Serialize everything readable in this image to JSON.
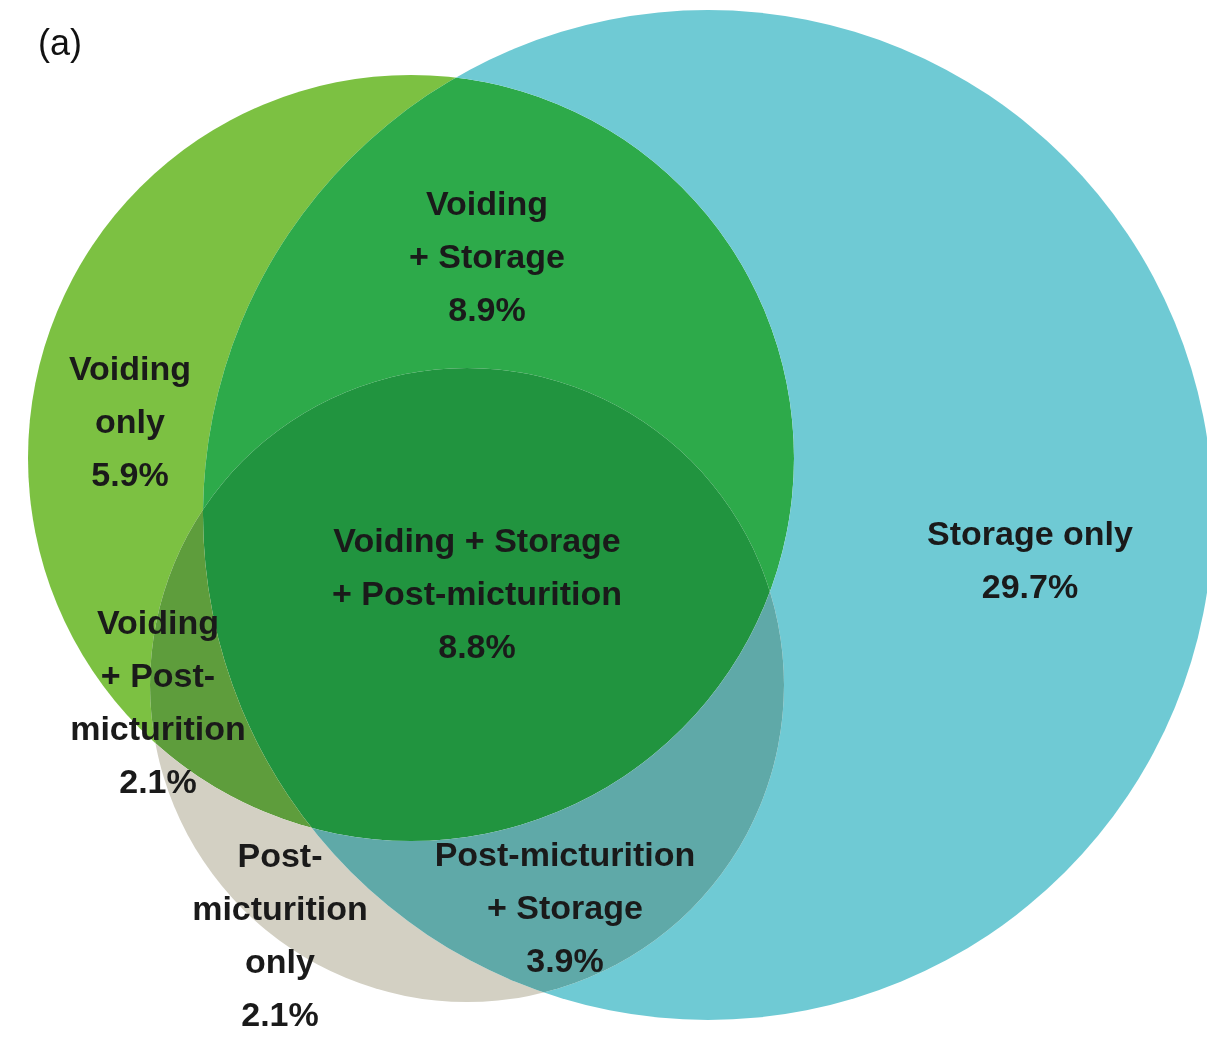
{
  "chart_data": {
    "type": "other",
    "title": "(a)",
    "categories": [
      "Voiding\nonly",
      "Voiding\n+ Storage",
      "Voiding + Storage\n+ Post-micturition",
      "Voiding\n+ Post-\nmicturition",
      "Storage only",
      "Post-\nmicturition\nonly",
      "Post-micturition\n+ Storage"
    ],
    "values": [
      5.9,
      8.9,
      8.8,
      2.1,
      29.7,
      2.1,
      3.9
    ],
    "value_labels": [
      "5.9%",
      "8.9%",
      "8.8%",
      "2.1%",
      "29.7%",
      "2.1%",
      "3.9%"
    ],
    "colors": [
      "#7cc142",
      "#2daa4a",
      "#21943f",
      "#5e9d3c",
      "#6fcad4",
      "#d3d0c3",
      "#5fa9a8"
    ]
  }
}
